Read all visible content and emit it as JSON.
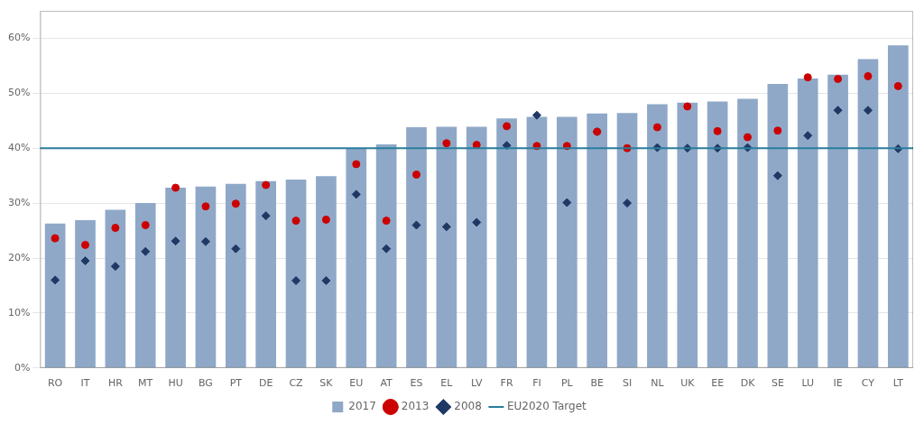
{
  "chart_data": {
    "type": "bar",
    "categories": [
      "RO",
      "IT",
      "HR",
      "MT",
      "HU",
      "BG",
      "PT",
      "DE",
      "CZ",
      "SK",
      "EU",
      "AT",
      "ES",
      "EL",
      "LV",
      "FR",
      "FI",
      "PL",
      "BE",
      "SI",
      "NL",
      "UK",
      "EE",
      "DK",
      "SE",
      "LU",
      "IE",
      "CY",
      "LT"
    ],
    "series": [
      {
        "name": "2017",
        "type": "bar",
        "color": "#8FA8C8",
        "values": [
          26.3,
          26.9,
          28.8,
          30.0,
          32.8,
          33.0,
          33.5,
          34.0,
          34.3,
          34.9,
          39.9,
          40.7,
          43.8,
          43.9,
          43.9,
          45.4,
          45.7,
          45.7,
          46.3,
          46.4,
          48.0,
          48.3,
          48.5,
          49.0,
          51.7,
          52.7,
          53.4,
          56.2,
          58.7
        ]
      },
      {
        "name": "2013",
        "type": "scatter",
        "color": "#CC0000",
        "marker": "circle",
        "values": [
          23.6,
          22.4,
          25.5,
          26.0,
          32.8,
          29.4,
          29.9,
          33.3,
          26.8,
          27.0,
          37.1,
          26.8,
          35.2,
          40.9,
          40.6,
          44.0,
          40.4,
          40.4,
          43.0,
          40.0,
          43.8,
          47.6,
          43.1,
          42.0,
          43.2,
          52.9,
          52.6,
          53.1,
          51.3
        ]
      },
      {
        "name": "2008",
        "type": "scatter",
        "color": "#1F3864",
        "marker": "diamond",
        "values": [
          16.0,
          19.5,
          18.5,
          21.2,
          23.1,
          23.0,
          21.7,
          27.7,
          15.9,
          15.9,
          31.6,
          21.7,
          26.0,
          25.7,
          26.5,
          40.5,
          46.0,
          30.1,
          43.0,
          30.0,
          40.1,
          40.0,
          40.0,
          40.1,
          35.0,
          42.3,
          46.9,
          46.9,
          39.9
        ]
      },
      {
        "name": "EU2020 Target",
        "type": "hline",
        "color": "#2A7D9C",
        "value": 40.0
      }
    ],
    "ylim": [
      0,
      65
    ],
    "yticks": [
      {
        "value": 0,
        "label": "0%"
      },
      {
        "value": 10,
        "label": "10%"
      },
      {
        "value": 20,
        "label": "20%"
      },
      {
        "value": 30,
        "label": "30%"
      },
      {
        "value": 40,
        "label": "40%"
      },
      {
        "value": 50,
        "label": "50%"
      },
      {
        "value": 60,
        "label": "60%"
      }
    ],
    "grid": true,
    "legend": "bottom"
  }
}
